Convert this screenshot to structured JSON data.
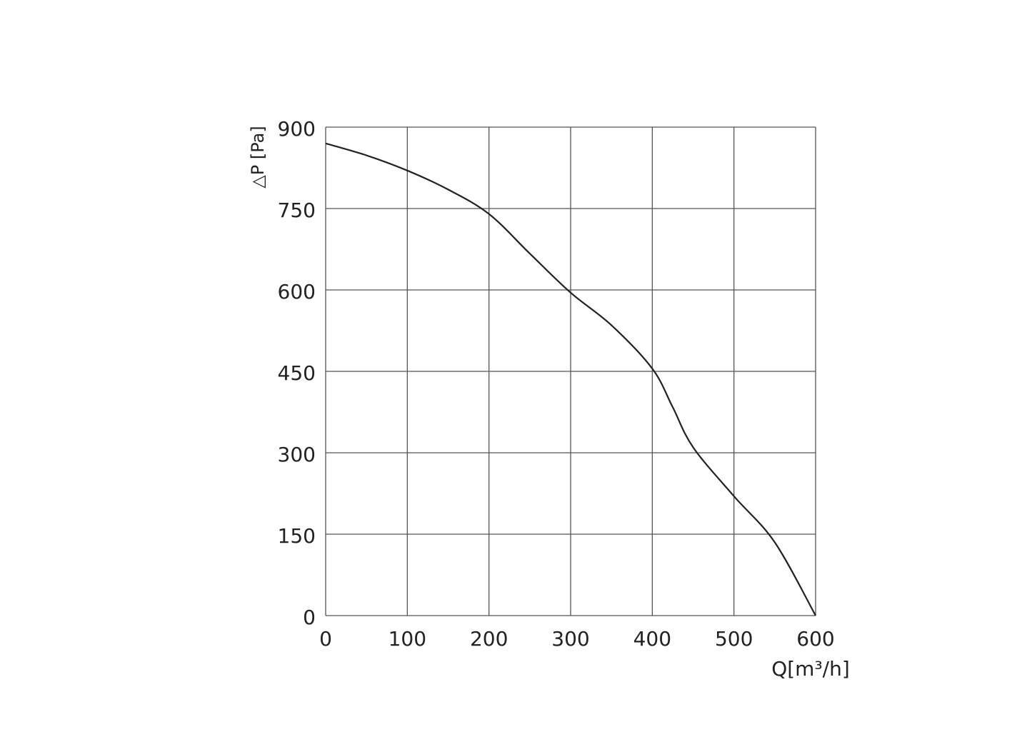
{
  "chart_data": {
    "type": "line",
    "x_label": "Q[m³/h]",
    "y_label": "△P [Pa]",
    "x": [
      0,
      50,
      100,
      150,
      200,
      250,
      300,
      350,
      400,
      425,
      450,
      500,
      550,
      600
    ],
    "series": [
      {
        "color": "#222222",
        "values": [
          870,
          848,
          820,
          785,
          740,
          667,
          595,
          535,
          455,
          384,
          310,
          220,
          135,
          0
        ]
      }
    ],
    "xlim": [
      0,
      600
    ],
    "xticks": [
      0,
      100,
      200,
      300,
      400,
      500,
      600
    ],
    "ylim": [
      0,
      900
    ],
    "yticks": [
      0,
      150,
      300,
      450,
      600,
      750,
      900
    ],
    "grid": true
  }
}
